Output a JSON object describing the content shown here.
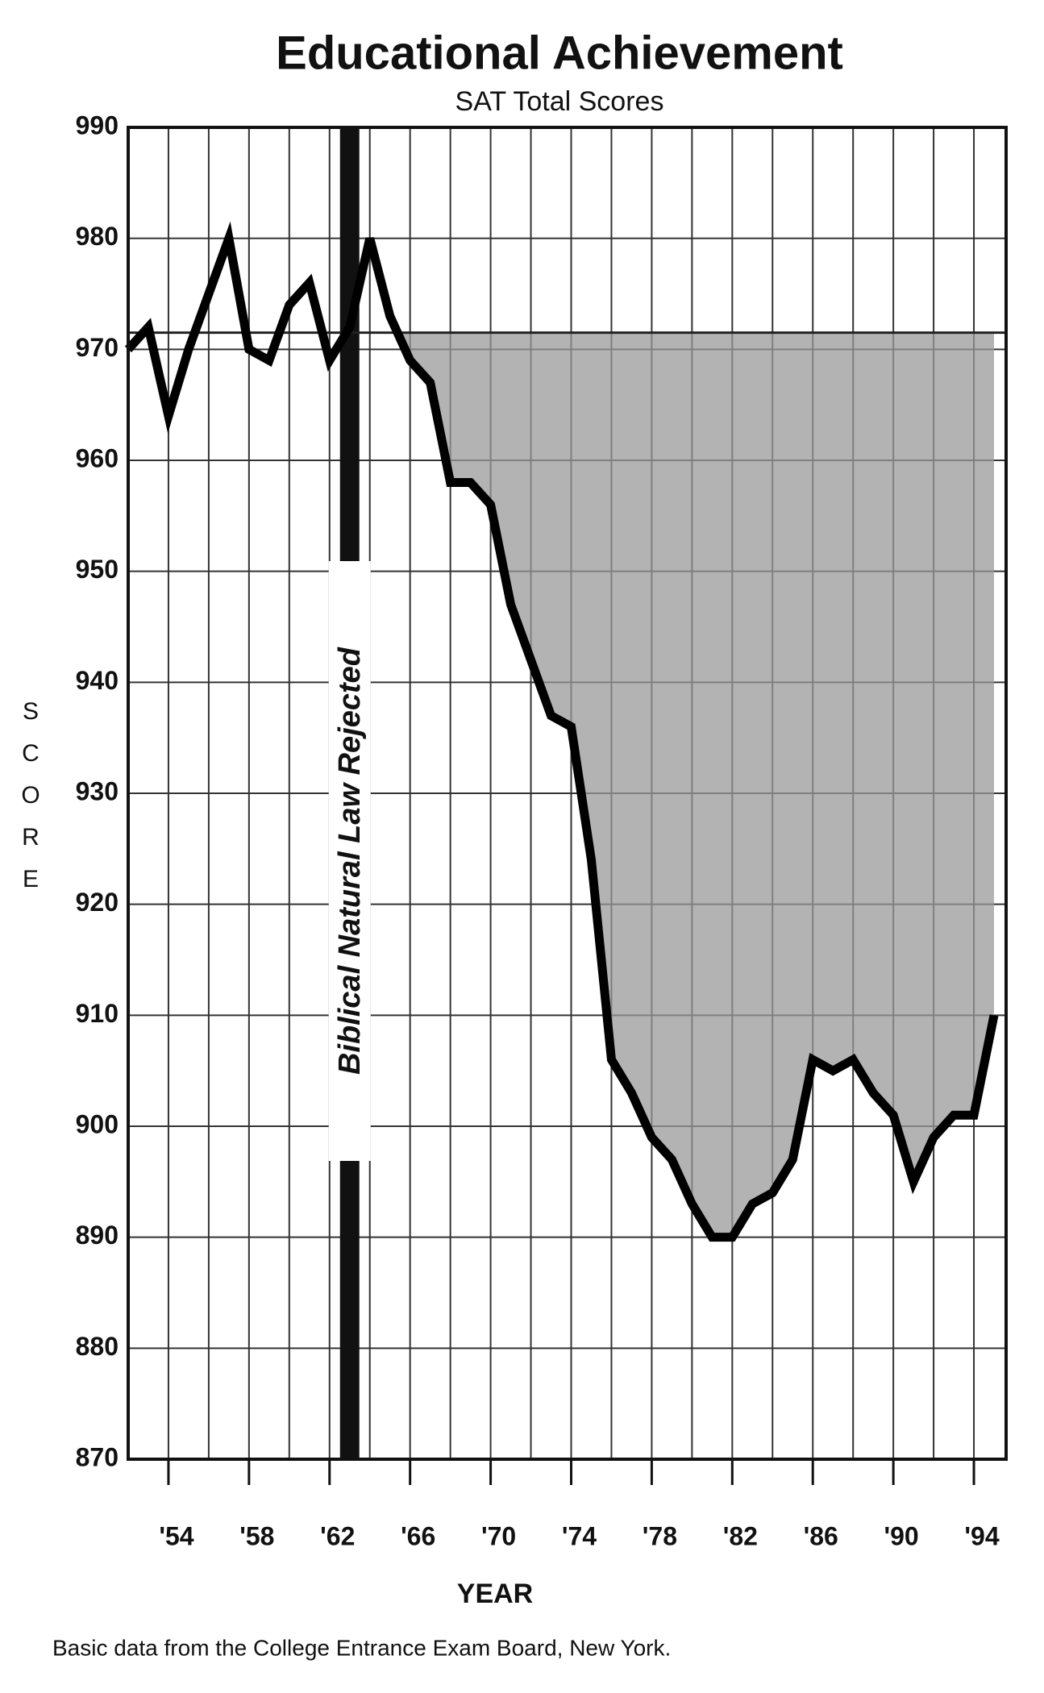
{
  "chart_data": {
    "type": "line",
    "title": "Educational Achievement",
    "subtitle": "SAT Total Scores",
    "x_label": "YEAR",
    "y_label": "SCORE",
    "source": "Basic data from the College Entrance Exam Board, New York.",
    "annotation": {
      "text": "Biblical Natural Law Rejected",
      "x": 1963
    },
    "reference_line": 971.5,
    "x": [
      1952,
      1953,
      1954,
      1955,
      1956,
      1957,
      1958,
      1959,
      1960,
      1961,
      1962,
      1963,
      1964,
      1965,
      1966,
      1967,
      1968,
      1969,
      1970,
      1971,
      1972,
      1973,
      1974,
      1975,
      1976,
      1977,
      1978,
      1979,
      1980,
      1981,
      1982,
      1983,
      1984,
      1985,
      1986,
      1987,
      1988,
      1989,
      1990,
      1991,
      1992,
      1993,
      1994,
      1995
    ],
    "series": [
      {
        "name": "SAT Total Scores",
        "color": "#000000",
        "values": [
          970,
          972,
          964,
          970,
          975,
          980,
          970,
          969,
          974,
          976,
          969,
          972,
          980,
          973,
          969,
          967,
          958,
          958,
          956,
          947,
          942,
          937,
          936,
          924,
          906,
          903,
          899,
          897,
          893,
          890,
          890,
          893,
          894,
          897,
          906,
          905,
          906,
          903,
          901,
          895,
          899,
          901,
          901,
          910
        ]
      }
    ],
    "shade_color": "#999999",
    "xlim": [
      1952,
      1995.6
    ],
    "xticks": [
      {
        "value": 1954,
        "label": "'54"
      },
      {
        "value": 1958,
        "label": "'58"
      },
      {
        "value": 1962,
        "label": "'62"
      },
      {
        "value": 1966,
        "label": "'66"
      },
      {
        "value": 1970,
        "label": "'70"
      },
      {
        "value": 1974,
        "label": "'74"
      },
      {
        "value": 1978,
        "label": "'78"
      },
      {
        "value": 1982,
        "label": "'82"
      },
      {
        "value": 1986,
        "label": "'86"
      },
      {
        "value": 1990,
        "label": "'90"
      },
      {
        "value": 1994,
        "label": "'94"
      }
    ],
    "xgrid": [
      1954,
      1956,
      1958,
      1960,
      1962,
      1964,
      1966,
      1968,
      1970,
      1972,
      1974,
      1976,
      1978,
      1980,
      1982,
      1984,
      1986,
      1988,
      1990,
      1992,
      1994
    ],
    "ylim": [
      870,
      990
    ],
    "yticks": [
      870,
      880,
      890,
      900,
      910,
      920,
      930,
      940,
      950,
      960,
      970,
      980,
      990
    ],
    "grid": true
  }
}
